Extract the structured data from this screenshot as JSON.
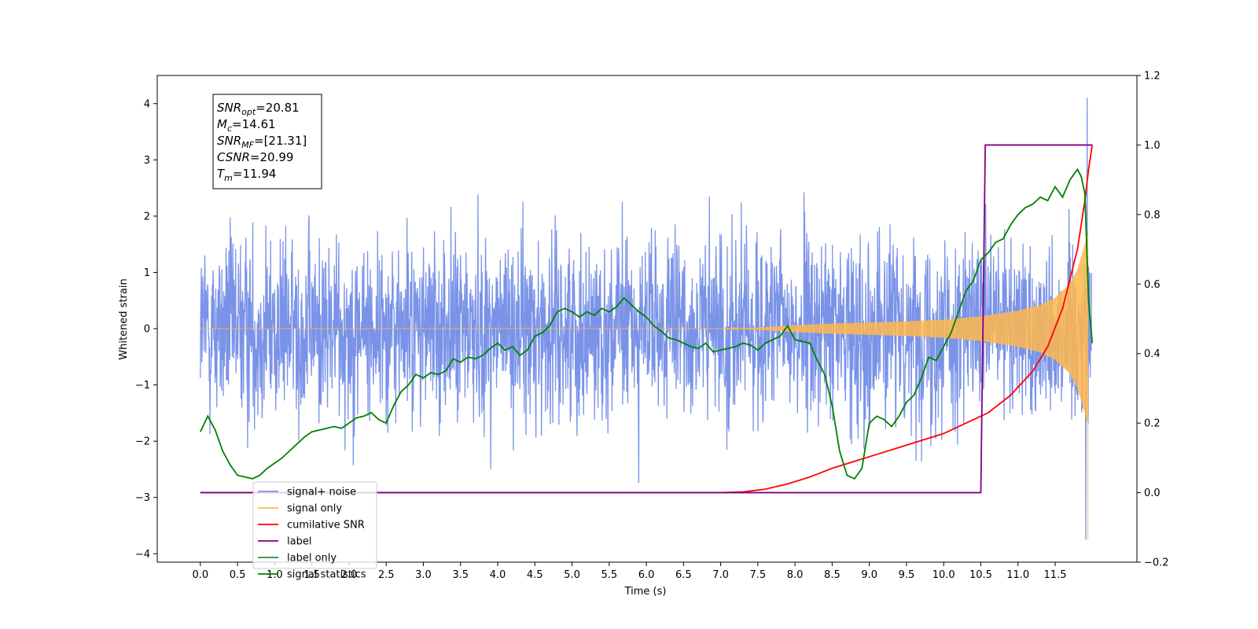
{
  "chart_data": {
    "type": "line",
    "title": "",
    "xlabel": "Time (s)",
    "ylabel": "Whitened strain",
    "xlim": [
      -0.58,
      12.6
    ],
    "ylim": [
      -4.15,
      4.5
    ],
    "y2lim": [
      -0.2,
      1.2
    ],
    "x_ticks": [
      0.0,
      0.5,
      1.0,
      1.5,
      2.0,
      2.5,
      3.0,
      3.5,
      4.0,
      4.5,
      5.0,
      5.5,
      6.0,
      6.5,
      7.0,
      7.5,
      8.0,
      8.5,
      9.0,
      9.5,
      10.0,
      10.5,
      11.0,
      11.5
    ],
    "x_tick_labels": [
      "0.0",
      "0.5",
      "1.0",
      "1.5",
      "2.0",
      "2.5",
      "3.0",
      "3.5",
      "4.0",
      "4.5",
      "5.0",
      "5.5",
      "6.0",
      "6.5",
      "7.0",
      "7.5",
      "8.0",
      "8.5",
      "9.0",
      "9.5",
      "10.0",
      "10.5",
      "11.0",
      "11.5"
    ],
    "y_ticks": [
      -4,
      -3,
      -2,
      -1,
      0,
      1,
      2,
      3,
      4
    ],
    "y_tick_labels": [
      "−4",
      "−3",
      "−2",
      "−1",
      "0",
      "1",
      "2",
      "3",
      "4"
    ],
    "y2_ticks": [
      -0.2,
      0.0,
      0.2,
      0.4,
      0.6,
      0.8,
      1.0,
      1.2
    ],
    "y2_tick_labels": [
      "−0.2",
      "0.0",
      "0.2",
      "0.4",
      "0.6",
      "0.8",
      "1.0",
      "1.2"
    ],
    "grid": false,
    "legend_position": "lower-left",
    "annotation": {
      "lines": [
        {
          "base": "SNR",
          "sub": "opt",
          "value": "=20.81"
        },
        {
          "base": "M",
          "sub": "c",
          "value": "=14.61"
        },
        {
          "base": "SNR",
          "sub": "MF",
          "value": "=[21.31]"
        },
        {
          "base": "CSNR",
          "sub": "",
          "value": "=20.99"
        },
        {
          "base": "T",
          "sub": "m",
          "value": "=11.94"
        }
      ]
    },
    "series": [
      {
        "name": "signal+ noise",
        "color": "#7a93e8",
        "axis": "left",
        "style": "noise",
        "x_range": [
          0.0,
          11.99
        ],
        "spread_y": [
          -3.3,
          3.35
        ],
        "max_peak_x": 11.93,
        "max_peak_y": 4.1,
        "min_peak_x": 11.91,
        "min_peak_y": -3.75
      },
      {
        "name": "signal only",
        "color": "#ffb74d",
        "axis": "left",
        "style": "chirp",
        "x_range": [
          0.0,
          11.94
        ],
        "envelope": {
          "x": [
            0.0,
            7.0,
            7.5,
            8.0,
            8.5,
            9.0,
            9.5,
            10.0,
            10.5,
            11.0,
            11.3,
            11.5,
            11.7,
            11.8,
            11.9,
            11.94
          ],
          "y": [
            0.0,
            0.0,
            0.02,
            0.06,
            0.09,
            0.11,
            0.13,
            0.16,
            0.22,
            0.32,
            0.42,
            0.55,
            0.8,
            1.05,
            1.5,
            1.7
          ]
        },
        "end_dip_y": -3.75
      },
      {
        "name": "cumilative SNR",
        "color": "#ff0000",
        "axis": "right",
        "x": [
          0.0,
          7.0,
          7.3,
          7.6,
          7.9,
          8.2,
          8.5,
          8.8,
          9.1,
          9.4,
          9.7,
          10.0,
          10.3,
          10.6,
          10.9,
          11.2,
          11.4,
          11.6,
          11.8,
          11.9,
          11.95,
          12.0
        ],
        "y": [
          0.0,
          0.0,
          0.002,
          0.01,
          0.025,
          0.045,
          0.07,
          0.09,
          0.11,
          0.13,
          0.15,
          0.17,
          0.2,
          0.23,
          0.28,
          0.35,
          0.42,
          0.53,
          0.7,
          0.84,
          0.93,
          1.0
        ]
      },
      {
        "name": "label",
        "color": "#800080",
        "axis": "right",
        "x": [
          0.0,
          10.5,
          10.56,
          11.99,
          12.0
        ],
        "y": [
          0.0,
          0.0,
          1.0,
          1.0,
          1.0
        ]
      },
      {
        "name": "label only",
        "color": "#2d8a4a",
        "axis": "right",
        "x": [],
        "y": []
      },
      {
        "name": "signal statistics",
        "color": "#008000",
        "axis": "right",
        "x": [
          0.0,
          0.1,
          0.2,
          0.3,
          0.4,
          0.5,
          0.6,
          0.7,
          0.8,
          0.9,
          1.0,
          1.1,
          1.2,
          1.3,
          1.4,
          1.5,
          1.6,
          1.7,
          1.8,
          1.9,
          2.0,
          2.1,
          2.2,
          2.3,
          2.4,
          2.5,
          2.6,
          2.7,
          2.8,
          2.9,
          3.0,
          3.1,
          3.2,
          3.3,
          3.4,
          3.5,
          3.6,
          3.7,
          3.8,
          3.9,
          4.0,
          4.1,
          4.2,
          4.3,
          4.4,
          4.5,
          4.6,
          4.7,
          4.8,
          4.9,
          5.0,
          5.1,
          5.2,
          5.3,
          5.4,
          5.5,
          5.6,
          5.7,
          5.8,
          5.9,
          6.0,
          6.1,
          6.2,
          6.3,
          6.4,
          6.5,
          6.6,
          6.7,
          6.8,
          6.9,
          7.0,
          7.1,
          7.2,
          7.3,
          7.4,
          7.5,
          7.6,
          7.7,
          7.8,
          7.9,
          8.0,
          8.1,
          8.2,
          8.3,
          8.4,
          8.5,
          8.6,
          8.7,
          8.8,
          8.9,
          9.0,
          9.1,
          9.2,
          9.3,
          9.4,
          9.5,
          9.6,
          9.7,
          9.8,
          9.9,
          10.0,
          10.1,
          10.2,
          10.3,
          10.4,
          10.5,
          10.6,
          10.7,
          10.8,
          10.9,
          11.0,
          11.1,
          11.2,
          11.3,
          11.4,
          11.5,
          11.6,
          11.7,
          11.8,
          11.85,
          11.9,
          11.95,
          12.0
        ],
        "y": [
          0.175,
          0.22,
          0.18,
          0.12,
          0.08,
          0.05,
          0.045,
          0.04,
          0.05,
          0.07,
          0.085,
          0.1,
          0.12,
          0.14,
          0.16,
          0.175,
          0.18,
          0.185,
          0.19,
          0.185,
          0.2,
          0.215,
          0.22,
          0.23,
          0.21,
          0.2,
          0.25,
          0.29,
          0.31,
          0.34,
          0.33,
          0.345,
          0.34,
          0.35,
          0.385,
          0.375,
          0.39,
          0.385,
          0.395,
          0.415,
          0.43,
          0.41,
          0.42,
          0.395,
          0.41,
          0.45,
          0.46,
          0.48,
          0.52,
          0.53,
          0.52,
          0.505,
          0.52,
          0.51,
          0.53,
          0.52,
          0.535,
          0.56,
          0.54,
          0.52,
          0.505,
          0.48,
          0.465,
          0.445,
          0.44,
          0.43,
          0.42,
          0.415,
          0.43,
          0.405,
          0.41,
          0.415,
          0.42,
          0.43,
          0.425,
          0.41,
          0.43,
          0.44,
          0.45,
          0.48,
          0.44,
          0.435,
          0.43,
          0.38,
          0.34,
          0.25,
          0.12,
          0.05,
          0.04,
          0.07,
          0.2,
          0.22,
          0.21,
          0.19,
          0.22,
          0.26,
          0.28,
          0.33,
          0.39,
          0.38,
          0.42,
          0.46,
          0.52,
          0.58,
          0.61,
          0.67,
          0.69,
          0.72,
          0.73,
          0.77,
          0.8,
          0.82,
          0.83,
          0.85,
          0.84,
          0.88,
          0.85,
          0.9,
          0.93,
          0.91,
          0.86,
          0.55,
          0.43
        ]
      }
    ]
  }
}
